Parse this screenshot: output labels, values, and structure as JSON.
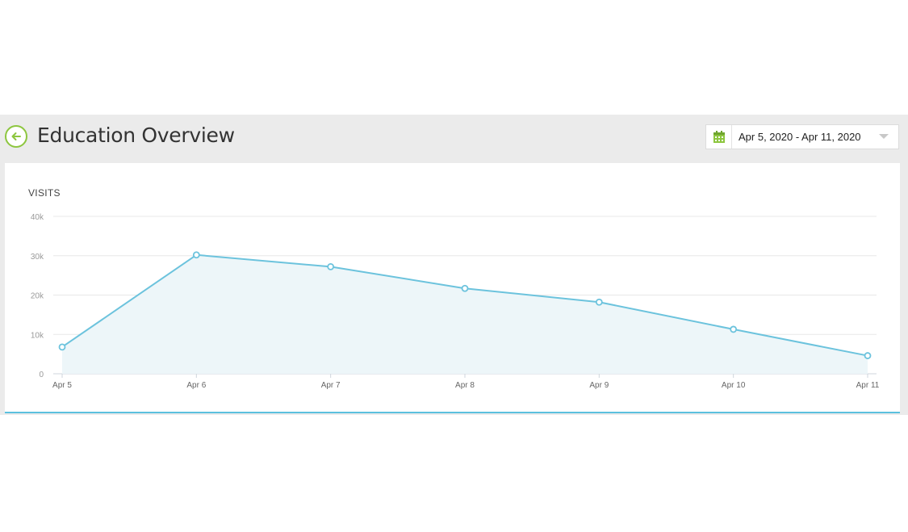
{
  "header": {
    "title": "Education Overview",
    "back_icon": "arrow-left-circle-icon",
    "accent_color": "#8dc63f"
  },
  "date_range": {
    "label": "Apr 5, 2020 - Apr 11, 2020",
    "icon": "calendar-icon",
    "dropdown_icon": "caret-down-icon"
  },
  "chart_data": {
    "type": "area",
    "title": "VISITS",
    "categories": [
      "Apr 5",
      "Apr 6",
      "Apr 7",
      "Apr 8",
      "Apr 9",
      "Apr 10",
      "Apr 11"
    ],
    "series": [
      {
        "values": [
          6800,
          30200,
          27200,
          21700,
          18200,
          11300,
          4600
        ]
      }
    ],
    "y_ticks": [
      "0",
      "10k",
      "20k",
      "30k",
      "40k"
    ],
    "ylim": [
      0,
      40000
    ],
    "grid": true,
    "line_color": "#6cc3dd",
    "fill_color": "#edf6f9"
  }
}
